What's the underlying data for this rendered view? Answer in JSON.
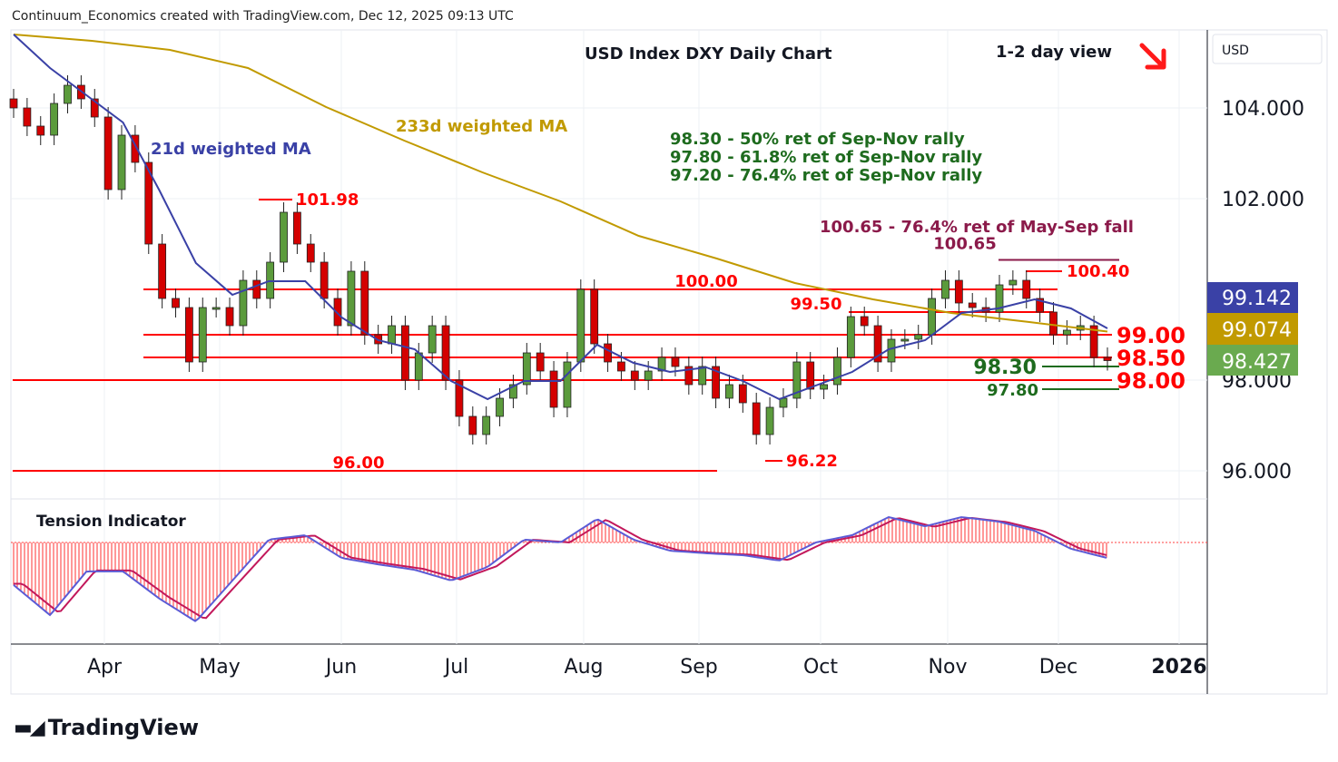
{
  "header": {
    "credit": "Continuum_Economics created with TradingView.com, Dec 12, 2025 09:13 UTC"
  },
  "footer": {
    "brand": "TradingView"
  },
  "colors": {
    "up": "#5b9b3c",
    "down": "#d40000",
    "ma21": "#3a41a6",
    "ma233": "#c19a00",
    "level": "#ff0000",
    "green_level": "#1e6b1e",
    "purple_level": "#8b1a4a"
  },
  "chart_data": {
    "type": "candlestick",
    "title": "USD Index DXY Daily Chart",
    "subtitle": "1-2 day view",
    "direction_icon": "arrow-down-right-icon",
    "currency": "USD",
    "ylim": [
      95.3,
      106.3
    ],
    "yticks": [
      "104.000",
      "102.000",
      "98.000",
      "96.000"
    ],
    "ytick_values": [
      104,
      102,
      98,
      96
    ],
    "xticks": [
      "Apr",
      "May",
      "Jun",
      "Jul",
      "Aug",
      "Sep",
      "Oct",
      "Nov",
      "Dec",
      "2026"
    ],
    "closes": [
      104.0,
      103.6,
      103.4,
      104.1,
      104.5,
      104.2,
      103.8,
      102.2,
      103.4,
      102.8,
      101.0,
      99.8,
      99.6,
      98.4,
      99.6,
      99.6,
      99.2,
      100.2,
      99.8,
      100.6,
      101.7,
      101.0,
      100.6,
      99.8,
      99.2,
      100.4,
      99.0,
      98.8,
      99.2,
      98.0,
      98.6,
      99.2,
      98.0,
      97.2,
      96.8,
      97.2,
      97.6,
      97.9,
      98.6,
      98.2,
      97.4,
      98.4,
      100.0,
      98.8,
      98.4,
      98.2,
      98.0,
      98.2,
      98.5,
      98.3,
      97.9,
      98.3,
      97.6,
      97.9,
      97.5,
      96.8,
      97.4,
      97.6,
      98.4,
      97.8,
      97.9,
      98.5,
      99.4,
      99.2,
      98.4,
      98.9,
      98.9,
      99.0,
      99.8,
      100.2,
      99.7,
      99.6,
      99.5,
      100.1,
      100.2,
      99.8,
      99.5,
      99.0,
      99.1,
      99.2,
      98.5,
      98.43
    ],
    "series": [
      {
        "name": "21d weighted MA",
        "values": [
          105.62,
          104.88,
          104.28,
          103.68,
          102.18,
          100.58,
          99.88,
          100.18,
          100.18,
          99.38,
          98.88,
          98.68,
          97.98,
          97.58,
          97.98,
          97.98,
          98.78,
          98.38,
          98.18,
          98.28,
          97.98,
          97.58,
          97.88,
          98.18,
          98.68,
          98.88,
          99.48,
          99.58,
          99.78,
          99.58,
          99.14
        ]
      },
      {
        "name": "233d weighted MA",
        "values": [
          105.62,
          105.48,
          105.28,
          104.88,
          104.02,
          103.28,
          102.58,
          101.94,
          101.18,
          100.68,
          100.14,
          99.78,
          99.48,
          99.28,
          99.07
        ]
      }
    ],
    "last_values": {
      "ma21": "99.142",
      "ma233": "99.074",
      "price": "98.427"
    },
    "levels": [
      {
        "label": "100.00",
        "value": 100.0
      },
      {
        "label": "99.50",
        "value": 99.5
      },
      {
        "label": "99.00",
        "value": 99.0
      },
      {
        "label": "98.50",
        "value": 98.5
      },
      {
        "label": "98.00",
        "value": 98.0
      },
      {
        "label": "96.00",
        "value": 96.0
      },
      {
        "label": "101.98",
        "value": 101.98
      },
      {
        "label": "100.40",
        "value": 100.4
      },
      {
        "label": "96.22",
        "value": 96.22
      },
      {
        "label": "100.65",
        "value": 100.65
      },
      {
        "label": "98.30",
        "value": 98.3
      },
      {
        "label": "97.80",
        "value": 97.8
      }
    ],
    "annotations": {
      "ma21_label": "21d weighted MA",
      "ma233_label": "233d weighted MA",
      "ret1": "98.30 - 50% ret of Sep-Nov rally",
      "ret2": "97.80 - 61.8% ret of Sep-Nov rally",
      "ret3": "97.20 - 76.4% ret of Sep-Nov rally",
      "ret4": "100.65 - 76.4% ret of May-Sep fall"
    },
    "indicator": {
      "name": "Tension Indicator",
      "values": [
        -1.34,
        -2.29,
        -0.91,
        -0.91,
        -1.77,
        -2.49,
        -1.2,
        0.09,
        0.23,
        -0.49,
        -0.69,
        -0.86,
        -1.2,
        -0.77,
        0.09,
        0,
        0.74,
        0.09,
        -0.26,
        -0.34,
        -0.4,
        -0.57,
        0,
        0.23,
        0.8,
        0.51,
        0.8,
        0.66,
        0.37,
        -0.2,
        -0.49
      ]
    }
  }
}
